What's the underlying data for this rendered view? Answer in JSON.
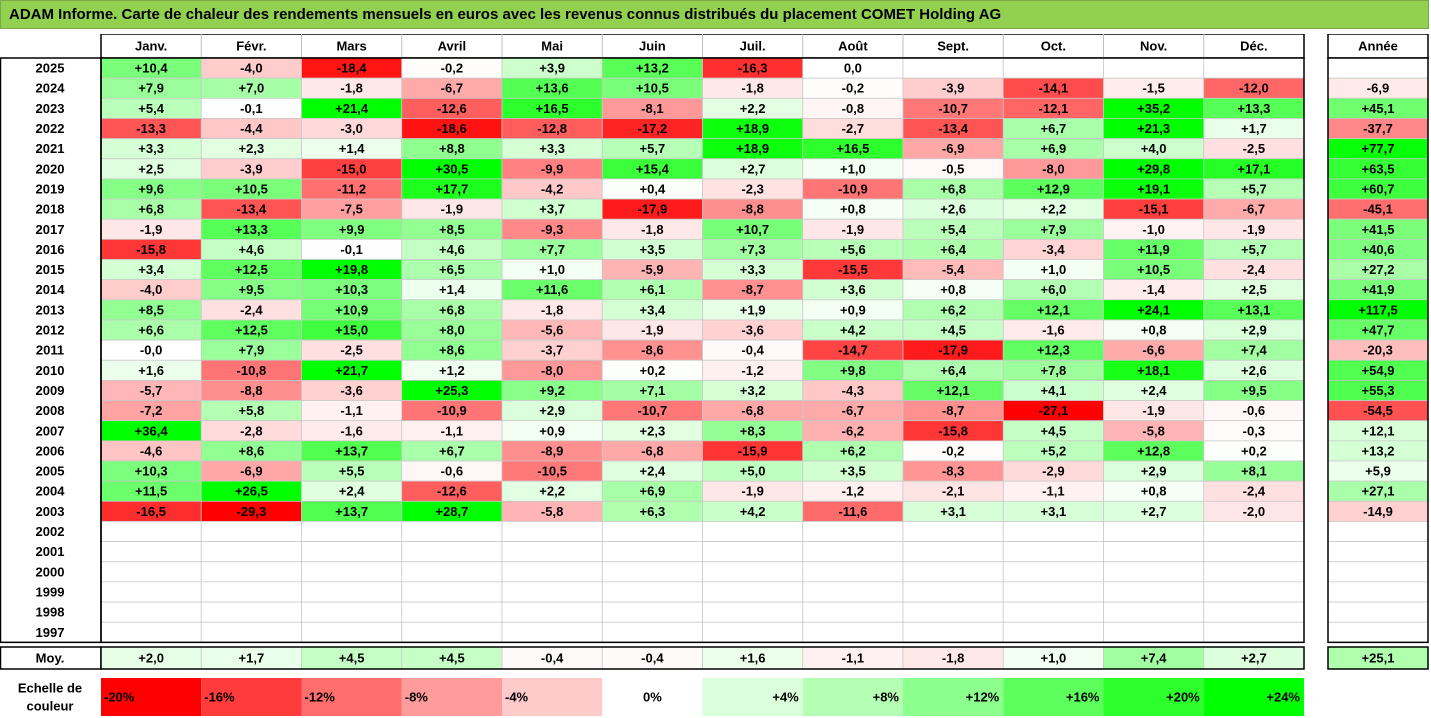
{
  "title": "ADAM Informe. Carte de chaleur des rendements mensuels en euros avec les revenus connus distribués du placement COMET Holding AG",
  "chart_data": {
    "type": "heatmap",
    "columns": [
      "Janv.",
      "Févr.",
      "Mars",
      "Avril",
      "Mai",
      "Juin",
      "Juil.",
      "Août",
      "Sept.",
      "Oct.",
      "Nov.",
      "Déc."
    ],
    "year_column": "Année",
    "rows": [
      {
        "year": "2025",
        "values": [
          "+10,4",
          "-4,0",
          "-18,4",
          "-0,2",
          "+3,9",
          "+13,2",
          "-16,3",
          "0,0",
          "",
          "",
          "",
          ""
        ],
        "annual": ""
      },
      {
        "year": "2024",
        "values": [
          "+7,9",
          "+7,0",
          "-1,8",
          "-6,7",
          "+13,6",
          "+10,5",
          "-1,8",
          "-0,2",
          "-3,9",
          "-14,1",
          "-1,5",
          "-12,0"
        ],
        "annual": "-6,9"
      },
      {
        "year": "2023",
        "values": [
          "+5,4",
          "-0,1",
          "+21,4",
          "-12,6",
          "+16,5",
          "-8,1",
          "+2,2",
          "-0,8",
          "-10,7",
          "-12,1",
          "+35,2",
          "+13,3"
        ],
        "annual": "+45,1"
      },
      {
        "year": "2022",
        "values": [
          "-13,3",
          "-4,4",
          "-3,0",
          "-18,6",
          "-12,8",
          "-17,2",
          "+18,9",
          "-2,7",
          "-13,4",
          "+6,7",
          "+21,3",
          "+1,7"
        ],
        "annual": "-37,7"
      },
      {
        "year": "2021",
        "values": [
          "+3,3",
          "+2,3",
          "+1,4",
          "+8,8",
          "+3,3",
          "+5,7",
          "+18,9",
          "+16,5",
          "-6,9",
          "+6,9",
          "+4,0",
          "-2,5"
        ],
        "annual": "+77,7"
      },
      {
        "year": "2020",
        "values": [
          "+2,5",
          "-3,9",
          "-15,0",
          "+30,5",
          "-9,9",
          "+15,4",
          "+2,7",
          "+1,0",
          "-0,5",
          "-8,0",
          "+29,8",
          "+17,1"
        ],
        "annual": "+63,5"
      },
      {
        "year": "2019",
        "values": [
          "+9,6",
          "+10,5",
          "-11,2",
          "+17,7",
          "-4,2",
          "+0,4",
          "-2,3",
          "-10,9",
          "+6,8",
          "+12,9",
          "+19,1",
          "+5,7"
        ],
        "annual": "+60,7"
      },
      {
        "year": "2018",
        "values": [
          "+6,8",
          "-13,4",
          "-7,5",
          "-1,9",
          "+3,7",
          "-17,9",
          "-8,8",
          "+0,8",
          "+2,6",
          "+2,2",
          "-15,1",
          "-6,7"
        ],
        "annual": "-45,1"
      },
      {
        "year": "2017",
        "values": [
          "-1,9",
          "+13,3",
          "+9,9",
          "+8,5",
          "-9,3",
          "-1,8",
          "+10,7",
          "-1,9",
          "+5,4",
          "+7,9",
          "-1,0",
          "-1,9"
        ],
        "annual": "+41,5"
      },
      {
        "year": "2016",
        "values": [
          "-15,8",
          "+4,6",
          "-0,1",
          "+4,6",
          "+7,7",
          "+3,5",
          "+7,3",
          "+5,6",
          "+6,4",
          "-3,4",
          "+11,9",
          "+5,7"
        ],
        "annual": "+40,6"
      },
      {
        "year": "2015",
        "values": [
          "+3,4",
          "+12,5",
          "+19,8",
          "+6,5",
          "+1,0",
          "-5,9",
          "+3,3",
          "-15,5",
          "-5,4",
          "+1,0",
          "+10,5",
          "-2,4"
        ],
        "annual": "+27,2"
      },
      {
        "year": "2014",
        "values": [
          "-4,0",
          "+9,5",
          "+10,3",
          "+1,4",
          "+11,6",
          "+6,1",
          "-8,7",
          "+3,6",
          "+0,8",
          "+6,0",
          "-1,4",
          "+2,5"
        ],
        "annual": "+41,9"
      },
      {
        "year": "2013",
        "values": [
          "+8,5",
          "-2,4",
          "+10,9",
          "+6,8",
          "-1,8",
          "+3,4",
          "+1,9",
          "+0,9",
          "+6,2",
          "+12,1",
          "+24,1",
          "+13,1"
        ],
        "annual": "+117,5"
      },
      {
        "year": "2012",
        "values": [
          "+6,6",
          "+12,5",
          "+15,0",
          "+8,0",
          "-5,6",
          "-1,9",
          "-3,6",
          "+4,2",
          "+4,5",
          "-1,6",
          "+0,8",
          "+2,9"
        ],
        "annual": "+47,7"
      },
      {
        "year": "2011",
        "values": [
          "-0,0",
          "+7,9",
          "-2,5",
          "+8,6",
          "-3,7",
          "-8,6",
          "-0,4",
          "-14,7",
          "-17,9",
          "+12,3",
          "-6,6",
          "+7,4"
        ],
        "annual": "-20,3"
      },
      {
        "year": "2010",
        "values": [
          "+1,6",
          "-10,8",
          "+21,7",
          "+1,2",
          "-8,0",
          "+0,2",
          "-1,2",
          "+9,8",
          "+6,4",
          "+7,8",
          "+18,1",
          "+2,6"
        ],
        "annual": "+54,9"
      },
      {
        "year": "2009",
        "values": [
          "-5,7",
          "-8,8",
          "-3,6",
          "+25,3",
          "+9,2",
          "+7,1",
          "+3,2",
          "-4,3",
          "+12,1",
          "+4,1",
          "+2,4",
          "+9,5"
        ],
        "annual": "+55,3"
      },
      {
        "year": "2008",
        "values": [
          "-7,2",
          "+5,8",
          "-1,1",
          "-10,9",
          "+2,9",
          "-10,7",
          "-6,8",
          "-6,7",
          "-8,7",
          "-27,1",
          "-1,9",
          "-0,6"
        ],
        "annual": "-54,5"
      },
      {
        "year": "2007",
        "values": [
          "+36,4",
          "-2,8",
          "-1,6",
          "-1,1",
          "+0,9",
          "+2,3",
          "+8,3",
          "-6,2",
          "-15,8",
          "+4,5",
          "-5,8",
          "-0,3"
        ],
        "annual": "+12,1"
      },
      {
        "year": "2006",
        "values": [
          "-4,6",
          "+8,6",
          "+13,7",
          "+6,7",
          "-8,9",
          "-6,8",
          "-15,9",
          "+6,2",
          "-0,2",
          "+5,2",
          "+12,8",
          "+0,2"
        ],
        "annual": "+13,2"
      },
      {
        "year": "2005",
        "values": [
          "+10,3",
          "-6,9",
          "+5,5",
          "-0,6",
          "-10,5",
          "+2,4",
          "+5,0",
          "+3,5",
          "-8,3",
          "-2,9",
          "+2,9",
          "+8,1"
        ],
        "annual": "+5,9"
      },
      {
        "year": "2004",
        "values": [
          "+11,5",
          "+26,5",
          "+2,4",
          "-12,6",
          "+2,2",
          "+6,9",
          "-1,9",
          "-1,2",
          "-2,1",
          "-1,1",
          "+0,8",
          "-2,4"
        ],
        "annual": "+27,1"
      },
      {
        "year": "2003",
        "values": [
          "-16,5",
          "-29,3",
          "+13,7",
          "+28,7",
          "-5,8",
          "+6,3",
          "+4,2",
          "-11,6",
          "+3,1",
          "+3,1",
          "+2,7",
          "-2,0"
        ],
        "annual": "-14,9"
      },
      {
        "year": "2002",
        "values": [
          "",
          "",
          "",
          "",
          "",
          "",
          "",
          "",
          "",
          "",
          "",
          ""
        ],
        "annual": ""
      },
      {
        "year": "2001",
        "values": [
          "",
          "",
          "",
          "",
          "",
          "",
          "",
          "",
          "",
          "",
          "",
          ""
        ],
        "annual": ""
      },
      {
        "year": "2000",
        "values": [
          "",
          "",
          "",
          "",
          "",
          "",
          "",
          "",
          "",
          "",
          "",
          ""
        ],
        "annual": ""
      },
      {
        "year": "1999",
        "values": [
          "",
          "",
          "",
          "",
          "",
          "",
          "",
          "",
          "",
          "",
          "",
          ""
        ],
        "annual": ""
      },
      {
        "year": "1998",
        "values": [
          "",
          "",
          "",
          "",
          "",
          "",
          "",
          "",
          "",
          "",
          "",
          ""
        ],
        "annual": ""
      },
      {
        "year": "1997",
        "values": [
          "",
          "",
          "",
          "",
          "",
          "",
          "",
          "",
          "",
          "",
          "",
          ""
        ],
        "annual": ""
      }
    ],
    "average": {
      "label": "Moy.",
      "values": [
        "+2,0",
        "+1,7",
        "+4,5",
        "+4,5",
        "-0,4",
        "-0,4",
        "+1,6",
        "-1,1",
        "-1,8",
        "+1,0",
        "+7,4",
        "+2,7"
      ],
      "annual": "+25,1"
    },
    "color_scale": {
      "label": "Echelle de couleur",
      "stops": [
        "-20%",
        "-16%",
        "-12%",
        "-8%",
        "-4%",
        "0%",
        "+4%",
        "+8%",
        "+12%",
        "+16%",
        "+20%",
        "+24%"
      ],
      "colors": [
        "#ff0000",
        "#ff3b3b",
        "#ff6d6d",
        "#ff9b9b",
        "#ffcaca",
        "#ffffff",
        "#dbffdb",
        "#b5ffb5",
        "#8cff8c",
        "#5cff5c",
        "#2cff2c",
        "#00ff00"
      ]
    }
  }
}
